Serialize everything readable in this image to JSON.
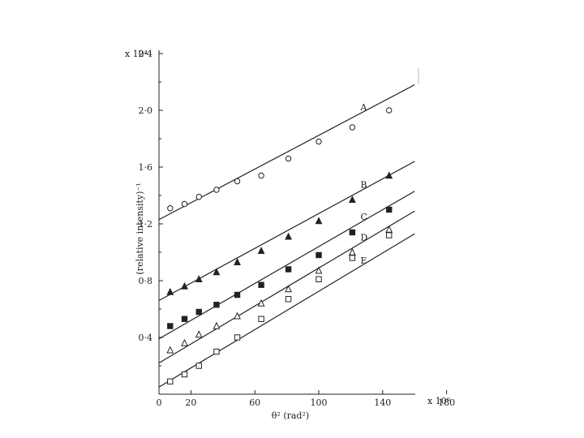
{
  "chart_data": {
    "type": "scatter",
    "title": "",
    "xlabel": "θ² (rad²)",
    "ylabel": "(relative intensity)⁻¹",
    "x_multiplier": "x 10⁶",
    "y_multiplier": "x 10⁴",
    "xlim": [
      0,
      160
    ],
    "ylim": [
      0,
      2.4
    ],
    "xticks": [
      0,
      20,
      60,
      100,
      140,
      180
    ],
    "xtick_labels": [
      "0",
      "20",
      "60",
      "100",
      "140",
      "180"
    ],
    "yticks": [
      0.4,
      0.8,
      1.2,
      1.6,
      2.0,
      2.4
    ],
    "ytick_labels": [
      "0·4",
      "0·8",
      "1·2",
      "1·6",
      "2·0",
      "2·4"
    ],
    "grid": false,
    "series": [
      {
        "name": "A",
        "marker": "open-circle",
        "x": [
          7,
          16,
          25,
          36,
          49,
          64,
          81,
          100,
          121,
          144
        ],
        "y": [
          1.31,
          1.34,
          1.39,
          1.44,
          1.5,
          1.54,
          1.66,
          1.78,
          1.88,
          2.0
        ],
        "fit": [
          [
            0,
            1.23
          ],
          [
            160,
            2.18
          ]
        ]
      },
      {
        "name": "B",
        "marker": "filled-triangle",
        "x": [
          7,
          16,
          25,
          36,
          49,
          64,
          81,
          100,
          121,
          144
        ],
        "y": [
          0.72,
          0.76,
          0.81,
          0.86,
          0.93,
          1.01,
          1.11,
          1.22,
          1.37,
          1.54
        ],
        "fit": [
          [
            0,
            0.66
          ],
          [
            160,
            1.64
          ]
        ]
      },
      {
        "name": "C",
        "marker": "filled-square",
        "x": [
          7,
          16,
          25,
          36,
          49,
          64,
          81,
          100,
          121,
          144
        ],
        "y": [
          0.48,
          0.53,
          0.58,
          0.63,
          0.7,
          0.77,
          0.88,
          0.98,
          1.14,
          1.3
        ],
        "fit": [
          [
            0,
            0.39
          ],
          [
            160,
            1.43
          ]
        ]
      },
      {
        "name": "D",
        "marker": "open-triangle",
        "x": [
          7,
          16,
          25,
          36,
          49,
          64,
          81,
          100,
          121,
          144
        ],
        "y": [
          0.31,
          0.36,
          0.42,
          0.48,
          0.55,
          0.64,
          0.74,
          0.87,
          1.0,
          1.16
        ],
        "fit": [
          [
            0,
            0.22
          ],
          [
            160,
            1.29
          ]
        ]
      },
      {
        "name": "E",
        "marker": "open-square",
        "x": [
          7,
          16,
          25,
          36,
          49,
          64,
          81,
          100,
          121,
          144
        ],
        "y": [
          0.09,
          0.14,
          0.2,
          0.3,
          0.4,
          0.53,
          0.67,
          0.81,
          0.96,
          1.12
        ],
        "fit": [
          [
            0,
            0.05
          ],
          [
            160,
            1.13
          ]
        ]
      }
    ]
  }
}
